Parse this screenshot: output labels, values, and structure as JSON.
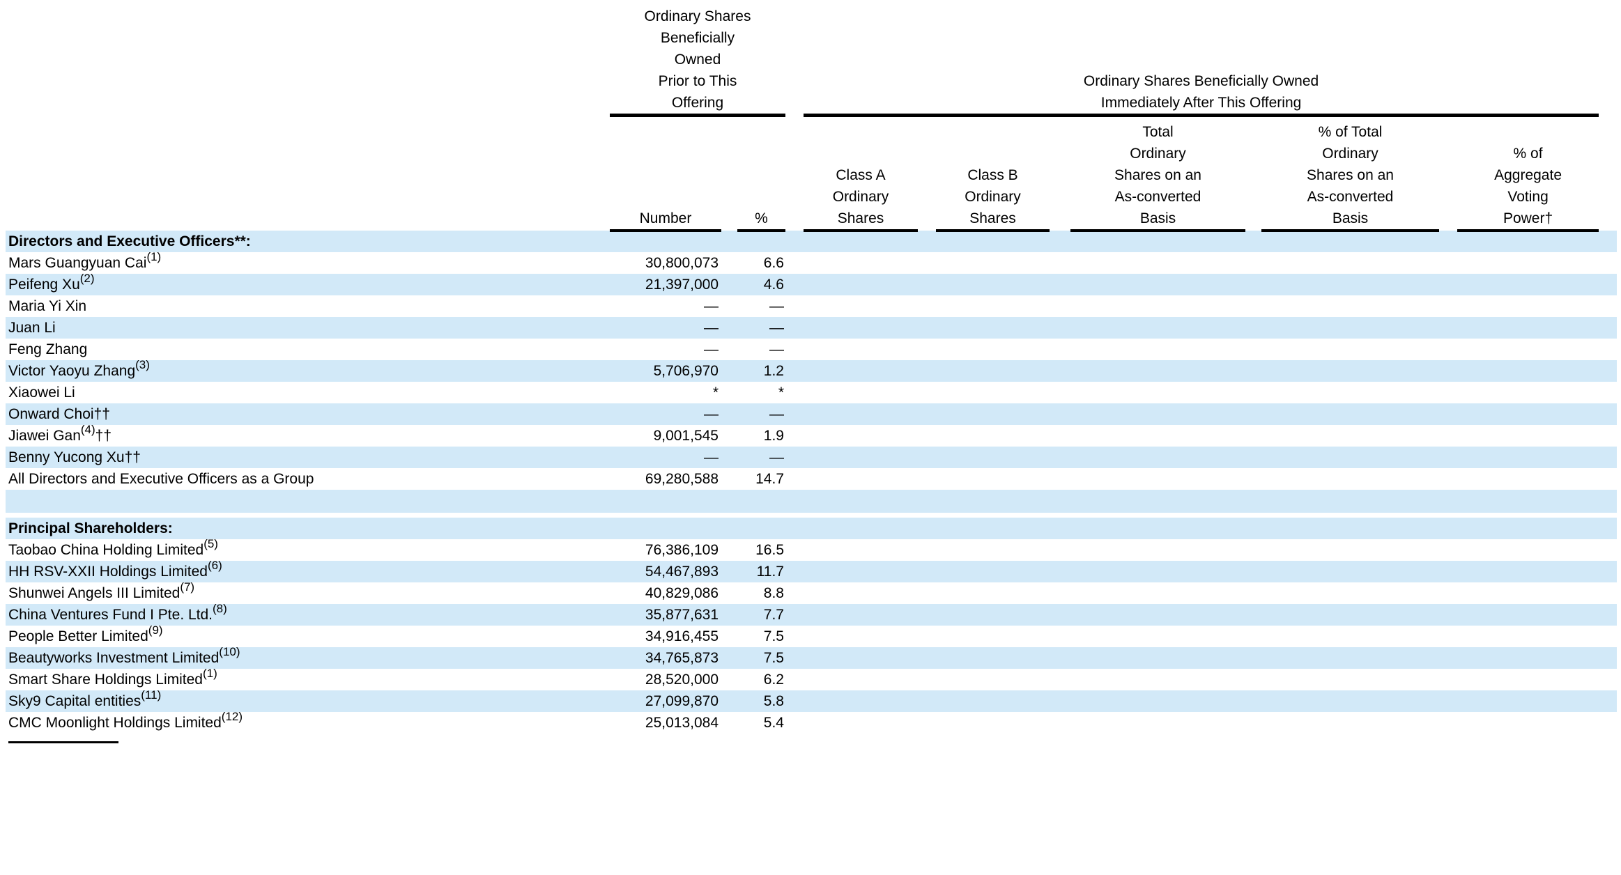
{
  "colors": {
    "row_shade": "#d2e9f8",
    "text": "#000000",
    "rule": "#000000"
  },
  "table": {
    "pre_offering_group": {
      "lines": [
        "Ordinary Shares",
        "Beneficially",
        "Owned",
        "Prior to This",
        "Offering"
      ]
    },
    "post_offering_group": {
      "lines": [
        "Ordinary Shares Beneficially Owned",
        "Immediately After This Offering"
      ]
    },
    "columns": {
      "number_label": "Number",
      "percent_label": "%",
      "class_a_lines": [
        "Class A",
        "Ordinary",
        "Shares"
      ],
      "class_b_lines": [
        "Class B",
        "Ordinary",
        "Shares"
      ],
      "total_lines": [
        "Total",
        "Ordinary",
        "Shares on an",
        "As-converted",
        "Basis"
      ],
      "pct_total_lines": [
        "% of Total",
        "Ordinary",
        "Shares on an",
        "As-converted",
        "Basis"
      ],
      "voting_lines": [
        "% of",
        "Aggregate",
        "Voting",
        "Power†"
      ]
    },
    "rows": [
      {
        "type": "section",
        "name": "Directors and Executive Officers**:",
        "shaded": true
      },
      {
        "type": "data",
        "name": "Mars Guangyuan Cai",
        "sup": "(1)",
        "number": "30,800,073",
        "pct": "6.6",
        "shaded": false
      },
      {
        "type": "data",
        "name": "Peifeng Xu",
        "sup": "(2)",
        "number": "21,397,000",
        "pct": "4.6",
        "shaded": true
      },
      {
        "type": "data",
        "name": "Maria Yi Xin",
        "number": "—",
        "pct": "—",
        "shaded": false
      },
      {
        "type": "data",
        "name": "Juan Li",
        "number": "—",
        "pct": "—",
        "shaded": true
      },
      {
        "type": "data",
        "name": "Feng Zhang",
        "number": "—",
        "pct": "—",
        "shaded": false
      },
      {
        "type": "data",
        "name": "Victor Yaoyu Zhang",
        "sup": "(3)",
        "number": "5,706,970",
        "pct": "1.2",
        "shaded": true
      },
      {
        "type": "data",
        "name": "Xiaowei Li",
        "number": "*",
        "pct": "*",
        "shaded": false
      },
      {
        "type": "data",
        "name": "Onward Choi††",
        "number": "—",
        "pct": "—",
        "shaded": true
      },
      {
        "type": "data",
        "name": "Jiawei Gan",
        "sup": "(4)",
        "suffix": "††",
        "number": "9,001,545",
        "pct": "1.9",
        "shaded": false
      },
      {
        "type": "data",
        "name": "Benny Yucong Xu††",
        "number": "—",
        "pct": "—",
        "shaded": true
      },
      {
        "type": "data",
        "name": "All Directors and Executive Officers as a Group",
        "number": "69,280,588",
        "pct": "14.7",
        "shaded": false
      },
      {
        "type": "blank",
        "shaded": true
      },
      {
        "type": "spacer",
        "shaded": false
      },
      {
        "type": "section",
        "name": "Principal Shareholders:",
        "shaded": true
      },
      {
        "type": "data",
        "name": "Taobao China Holding Limited",
        "sup": "(5)",
        "number": "76,386,109",
        "pct": "16.5",
        "shaded": false
      },
      {
        "type": "data",
        "name": "HH RSV-XXII Holdings Limited",
        "sup": "(6)",
        "number": "54,467,893",
        "pct": "11.7",
        "shaded": true
      },
      {
        "type": "data",
        "name": "Shunwei Angels III Limited",
        "sup": "(7)",
        "number": "40,829,086",
        "pct": "8.8",
        "shaded": false
      },
      {
        "type": "data",
        "name": "China Ventures Fund I Pte. Ltd.",
        "sup": "(8)",
        "number": "35,877,631",
        "pct": "7.7",
        "shaded": true
      },
      {
        "type": "data",
        "name": "People Better Limited",
        "sup": "(9)",
        "number": "34,916,455",
        "pct": "7.5",
        "shaded": false
      },
      {
        "type": "data",
        "name": "Beautyworks Investment Limited",
        "sup": "(10)",
        "number": "34,765,873",
        "pct": "7.5",
        "shaded": true
      },
      {
        "type": "data",
        "name": "Smart Share Holdings Limited",
        "sup": "(1)",
        "number": "28,520,000",
        "pct": "6.2",
        "shaded": false
      },
      {
        "type": "data",
        "name": "Sky9 Capital entities",
        "sup": "(11)",
        "number": "27,099,870",
        "pct": "5.8",
        "shaded": true
      },
      {
        "type": "data",
        "name": "CMC Moonlight Holdings Limited",
        "sup": "(12)",
        "number": "25,013,084",
        "pct": "5.4",
        "shaded": false
      }
    ]
  }
}
